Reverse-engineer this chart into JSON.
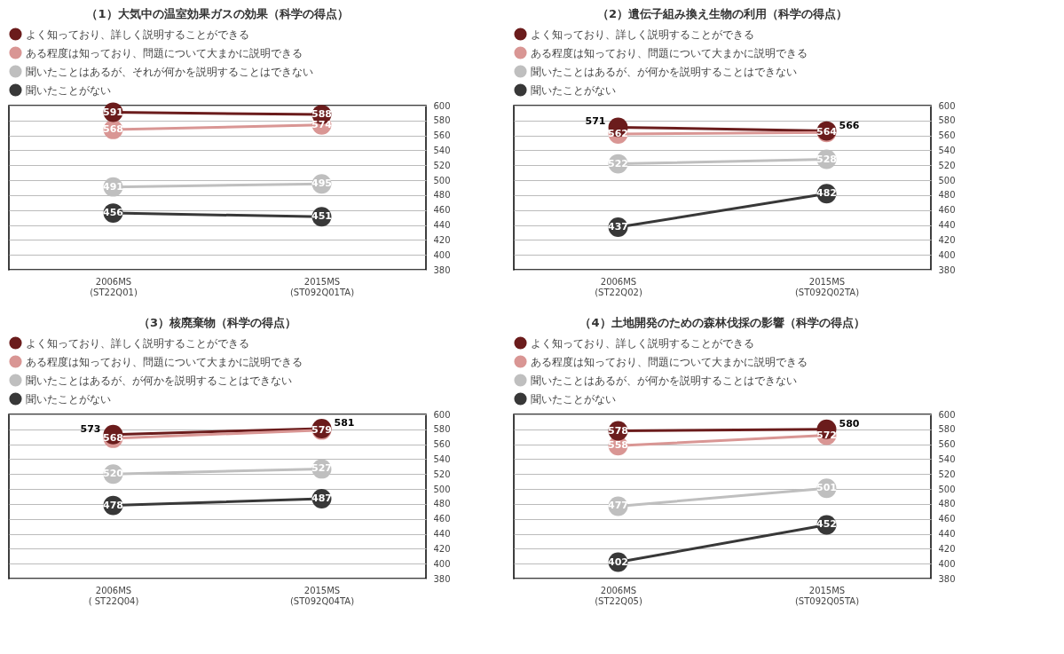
{
  "chart_data": [
    {
      "type": "line",
      "title": "（1）大気中の温室効果ガスの効果（科学の得点）",
      "categories": [
        "2006MS\n(ST22Q01)",
        "2015MS\n(ST092Q01TA)"
      ],
      "series": [
        {
          "name": "よく知っており、詳しく説明することができる",
          "color": "#6b1c1c",
          "values": [
            591,
            588
          ]
        },
        {
          "name": "ある程度は知っており、問題について大まかに説明できる",
          "color": "#d99694",
          "values": [
            568,
            574
          ]
        },
        {
          "name": "聞いたことはあるが、それが何かを説明することはできない",
          "color": "#bfbfbf",
          "values": [
            491,
            495
          ]
        },
        {
          "name": "聞いたことがない",
          "color": "#383838",
          "values": [
            456,
            451
          ]
        }
      ],
      "ylim": [
        380,
        600
      ],
      "yticks": [
        380,
        400,
        420,
        440,
        460,
        480,
        500,
        520,
        540,
        560,
        580,
        600
      ],
      "grid": "y",
      "legend": "top",
      "marker": "circle",
      "line_style": "solid",
      "data_labels": true
    },
    {
      "type": "line",
      "title": "（2）遺伝子組み換え生物の利用（科学の得点）",
      "categories": [
        "2006MS\n(ST22Q02)",
        "2015MS\n(ST092Q02TA)"
      ],
      "series": [
        {
          "name": "よく知っており、詳しく説明することができる",
          "color": "#6b1c1c",
          "values": [
            571,
            566
          ]
        },
        {
          "name": "ある程度は知っており、問題について大まかに説明できる",
          "color": "#d99694",
          "values": [
            562,
            564
          ]
        },
        {
          "name": "聞いたことはあるが、が何かを説明することはできない",
          "color": "#bfbfbf",
          "values": [
            522,
            528
          ]
        },
        {
          "name": "聞いたことがない",
          "color": "#383838",
          "values": [
            437,
            482
          ]
        }
      ],
      "ylim": [
        380,
        600
      ],
      "yticks": [
        380,
        400,
        420,
        440,
        460,
        480,
        500,
        520,
        540,
        560,
        580,
        600
      ],
      "grid": "y",
      "legend": "top",
      "marker": "circle",
      "line_style": "solid",
      "data_labels": true
    },
    {
      "type": "line",
      "title": "（3）核廃棄物（科学の得点）",
      "categories": [
        "2006MS\n( ST22Q04)",
        "2015MS\n(ST092Q04TA)"
      ],
      "series": [
        {
          "name": "よく知っており、詳しく説明することができる",
          "color": "#6b1c1c",
          "values": [
            573,
            581
          ]
        },
        {
          "name": "ある程度は知っており、問題について大まかに説明できる",
          "color": "#d99694",
          "values": [
            568,
            579
          ]
        },
        {
          "name": "聞いたことはあるが、が何かを説明することはできない",
          "color": "#bfbfbf",
          "values": [
            520,
            527
          ]
        },
        {
          "name": "聞いたことがない",
          "color": "#383838",
          "values": [
            478,
            487
          ]
        }
      ],
      "ylim": [
        380,
        600
      ],
      "yticks": [
        380,
        400,
        420,
        440,
        460,
        480,
        500,
        520,
        540,
        560,
        580,
        600
      ],
      "grid": "y",
      "legend": "top",
      "marker": "circle",
      "line_style": "solid",
      "data_labels": true
    },
    {
      "type": "line",
      "title": "（4）土地開発のための森林伐採の影響（科学の得点）",
      "categories": [
        "2006MS\n(ST22Q05)",
        "2015MS\n(ST092Q05TA)"
      ],
      "series": [
        {
          "name": "よく知っており、詳しく説明することができる",
          "color": "#6b1c1c",
          "values": [
            578,
            580
          ]
        },
        {
          "name": "ある程度は知っており、問題について大まかに説明できる",
          "color": "#d99694",
          "values": [
            558,
            572
          ]
        },
        {
          "name": "聞いたことはあるが、が何かを説明することはできない",
          "color": "#bfbfbf",
          "values": [
            477,
            501
          ]
        },
        {
          "name": "聞いたことがない",
          "color": "#383838",
          "values": [
            402,
            452
          ]
        }
      ],
      "ylim": [
        380,
        600
      ],
      "yticks": [
        380,
        400,
        420,
        440,
        460,
        480,
        500,
        520,
        540,
        560,
        580,
        600
      ],
      "grid": "y",
      "legend": "top",
      "marker": "circle",
      "line_style": "solid",
      "data_labels": true
    }
  ]
}
